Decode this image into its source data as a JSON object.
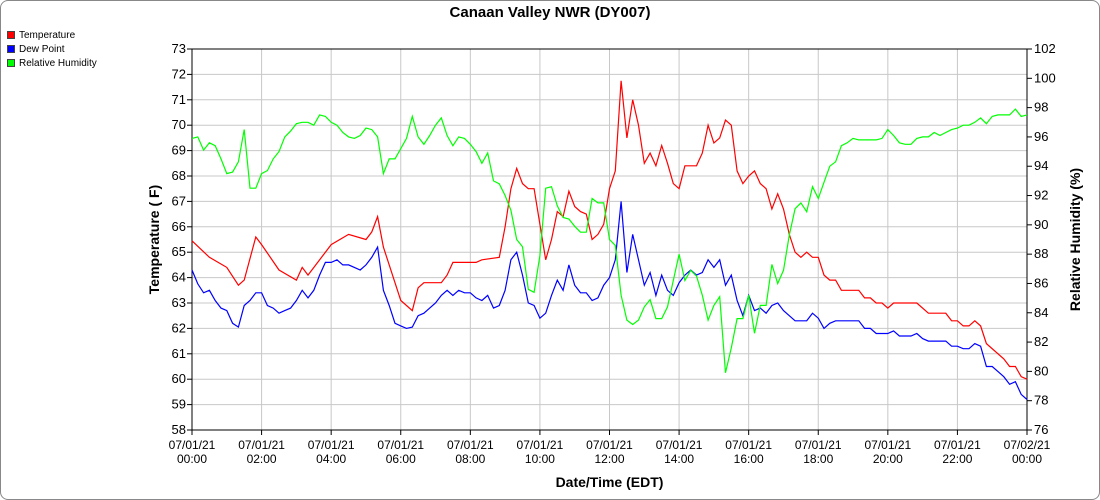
{
  "chart_data": {
    "type": "line",
    "title": "Canaan Valley NWR (DY007)",
    "xlabel": "Date/Time (EDT)",
    "ylabel": "Temperature ( F)",
    "y2label": "Relative Humidity (%)",
    "ylim": [
      58,
      73
    ],
    "y2lim": [
      76,
      102
    ],
    "yticks": [
      "58",
      "59",
      "60",
      "61",
      "62",
      "63",
      "64",
      "65",
      "66",
      "67",
      "68",
      "69",
      "70",
      "71",
      "72",
      "73"
    ],
    "y2ticks": [
      "76",
      "78",
      "80",
      "82",
      "84",
      "86",
      "88",
      "90",
      "92",
      "94",
      "96",
      "98",
      "100",
      "102"
    ],
    "xticks": [
      {
        "date": "07/01/21",
        "time": "00:00"
      },
      {
        "date": "07/01/21",
        "time": "02:00"
      },
      {
        "date": "07/01/21",
        "time": "04:00"
      },
      {
        "date": "07/01/21",
        "time": "06:00"
      },
      {
        "date": "07/01/21",
        "time": "08:00"
      },
      {
        "date": "07/01/21",
        "time": "10:00"
      },
      {
        "date": "07/01/21",
        "time": "12:00"
      },
      {
        "date": "07/01/21",
        "time": "14:00"
      },
      {
        "date": "07/01/21",
        "time": "16:00"
      },
      {
        "date": "07/01/21",
        "time": "18:00"
      },
      {
        "date": "07/01/21",
        "time": "20:00"
      },
      {
        "date": "07/01/21",
        "time": "22:00"
      },
      {
        "date": "07/02/21",
        "time": "00:00"
      }
    ],
    "interval_minutes": 10,
    "grid": true,
    "legend_position": "top-left",
    "series": [
      {
        "name": "Temperature",
        "color": "#ff0000",
        "axis": "left",
        "points": [
          [
            0,
            65.45
          ],
          [
            3,
            64.8
          ],
          [
            6,
            64.4
          ],
          [
            8,
            63.7
          ],
          [
            9,
            63.9
          ],
          [
            11,
            65.6
          ],
          [
            12,
            65.3
          ],
          [
            15,
            64.3
          ],
          [
            18,
            63.9
          ],
          [
            19,
            64.4
          ],
          [
            20,
            64.1
          ],
          [
            24,
            65.3
          ],
          [
            27,
            65.7
          ],
          [
            30,
            65.5
          ],
          [
            31,
            65.8
          ],
          [
            32,
            66.4
          ],
          [
            33,
            65.2
          ],
          [
            36,
            63.1
          ],
          [
            38,
            62.7
          ],
          [
            39,
            63.6
          ],
          [
            40,
            63.8
          ],
          [
            43,
            63.8
          ],
          [
            44,
            64.1
          ],
          [
            45,
            64.6
          ],
          [
            49,
            64.6
          ],
          [
            50,
            64.7
          ],
          [
            53,
            64.8
          ],
          [
            54,
            66.0
          ],
          [
            55,
            67.5
          ],
          [
            56,
            68.3
          ],
          [
            57,
            67.7
          ],
          [
            58,
            67.5
          ],
          [
            59,
            67.5
          ],
          [
            60,
            66.1
          ],
          [
            61,
            64.7
          ],
          [
            62,
            65.5
          ],
          [
            63,
            66.6
          ],
          [
            64,
            66.4
          ],
          [
            65,
            67.4
          ],
          [
            66,
            66.8
          ],
          [
            67,
            66.6
          ],
          [
            68,
            66.5
          ],
          [
            69,
            65.5
          ],
          [
            70,
            65.7
          ],
          [
            71,
            66.1
          ],
          [
            72,
            67.5
          ],
          [
            73,
            68.2
          ],
          [
            74,
            71.75
          ],
          [
            75,
            69.5
          ],
          [
            76,
            71.0
          ],
          [
            77,
            70.0
          ],
          [
            78,
            68.5
          ],
          [
            79,
            68.9
          ],
          [
            80,
            68.4
          ],
          [
            81,
            69.2
          ],
          [
            82,
            68.5
          ],
          [
            83,
            67.7
          ],
          [
            84,
            67.5
          ],
          [
            85,
            68.4
          ],
          [
            87,
            68.4
          ],
          [
            88,
            68.9
          ],
          [
            89,
            70.0
          ],
          [
            90,
            69.3
          ],
          [
            91,
            69.5
          ],
          [
            92,
            70.2
          ],
          [
            93,
            70.0
          ],
          [
            94,
            68.2
          ],
          [
            95,
            67.7
          ],
          [
            96,
            68.0
          ],
          [
            97,
            68.2
          ],
          [
            98,
            67.7
          ],
          [
            99,
            67.5
          ],
          [
            100,
            66.7
          ],
          [
            101,
            67.3
          ],
          [
            102,
            66.7
          ],
          [
            103,
            65.7
          ],
          [
            104,
            65.0
          ],
          [
            105,
            64.8
          ],
          [
            106,
            65.0
          ],
          [
            107,
            64.8
          ],
          [
            108,
            64.8
          ],
          [
            109,
            64.1
          ],
          [
            110,
            63.9
          ],
          [
            111,
            63.9
          ],
          [
            112,
            63.5
          ],
          [
            115,
            63.5
          ],
          [
            116,
            63.2
          ],
          [
            117,
            63.2
          ],
          [
            118,
            63.0
          ],
          [
            119,
            63.0
          ],
          [
            120,
            62.8
          ],
          [
            121,
            63.0
          ],
          [
            125,
            63.0
          ],
          [
            127,
            62.6
          ],
          [
            130,
            62.6
          ],
          [
            131,
            62.3
          ],
          [
            132,
            62.3
          ],
          [
            133,
            62.1
          ],
          [
            134,
            62.1
          ],
          [
            135,
            62.3
          ],
          [
            136,
            62.1
          ],
          [
            137,
            61.4
          ],
          [
            140,
            60.8
          ],
          [
            141,
            60.5
          ],
          [
            142,
            60.5
          ],
          [
            143,
            60.1
          ],
          [
            144,
            60.0
          ]
        ]
      },
      {
        "name": "Dew Point",
        "color": "#0000ff",
        "axis": "left",
        "values": [
          64.3,
          63.75,
          63.4,
          63.5,
          63.1,
          62.8,
          62.7,
          62.2,
          62.05,
          62.9,
          63.1,
          63.4,
          63.4,
          62.9,
          62.8,
          62.6,
          62.7,
          62.8,
          63.1,
          63.5,
          63.2,
          63.5,
          64.1,
          64.6,
          64.6,
          64.7,
          64.5,
          64.5,
          64.4,
          64.3,
          64.5,
          64.8,
          65.2,
          63.5,
          62.9,
          62.2,
          62.1,
          62.0,
          62.05,
          62.5,
          62.6,
          62.8,
          63.0,
          63.3,
          63.5,
          63.3,
          63.5,
          63.4,
          63.4,
          63.2,
          63.1,
          63.3,
          62.8,
          62.9,
          63.5,
          64.7,
          65.0,
          64.1,
          63.0,
          62.9,
          62.4,
          62.6,
          63.3,
          63.9,
          63.5,
          64.5,
          63.7,
          63.4,
          63.4,
          63.1,
          63.2,
          63.7,
          64.0,
          64.7,
          67.0,
          64.2,
          65.7,
          64.7,
          63.7,
          64.2,
          63.3,
          64.1,
          63.5,
          63.3,
          63.8,
          64.1,
          64.3,
          64.1,
          64.2,
          64.7,
          64.4,
          64.7,
          63.7,
          64.1,
          63.1,
          62.5,
          63.3,
          62.7,
          62.8,
          62.6,
          62.9,
          63.0,
          62.7,
          62.5,
          62.3,
          62.3,
          62.3,
          62.6,
          62.4,
          62.0,
          62.2,
          62.3,
          62.3,
          62.3,
          62.3,
          62.3,
          62.0,
          62.0,
          61.8,
          61.8,
          61.8,
          61.9,
          61.7,
          61.7,
          61.7,
          61.8,
          61.6,
          61.5,
          61.5,
          61.5,
          61.5,
          61.3,
          61.3,
          61.2,
          61.2,
          61.4,
          61.3,
          60.5,
          60.5,
          60.3,
          60.1,
          59.8,
          59.9,
          59.4,
          59.2
        ]
      },
      {
        "name": "Relative Humidity",
        "color": "#00ff00",
        "axis": "right",
        "values": [
          95.9,
          96.0,
          95.1,
          95.6,
          95.4,
          94.5,
          93.5,
          93.6,
          94.3,
          96.5,
          92.5,
          92.5,
          93.5,
          93.7,
          94.5,
          95.0,
          96.0,
          96.4,
          96.9,
          97.0,
          97.0,
          96.8,
          97.5,
          97.4,
          97.0,
          96.8,
          96.3,
          96.0,
          95.9,
          96.1,
          96.6,
          96.5,
          96.0,
          93.5,
          94.5,
          94.5,
          95.2,
          95.9,
          97.4,
          96.0,
          95.5,
          96.1,
          96.8,
          97.3,
          96.1,
          95.4,
          96.0,
          95.9,
          95.5,
          95.0,
          94.2,
          94.9,
          93.0,
          92.8,
          92.0,
          91.0,
          89.0,
          88.5,
          85.6,
          85.4,
          87.9,
          92.5,
          92.6,
          91.3,
          90.5,
          90.4,
          89.9,
          89.5,
          89.5,
          91.8,
          91.5,
          91.5,
          89.0,
          88.6,
          85.2,
          83.5,
          83.2,
          83.5,
          84.4,
          84.9,
          83.6,
          83.6,
          84.4,
          86.2,
          88.0,
          86.2,
          86.9,
          86.5,
          85.2,
          83.5,
          84.5,
          85.1,
          79.9,
          81.6,
          83.6,
          83.6,
          85.2,
          82.6,
          84.5,
          84.5,
          87.3,
          86.0,
          86.9,
          89.3,
          91.1,
          91.5,
          90.9,
          92.6,
          91.8,
          92.9,
          94.0,
          94.3,
          95.4,
          95.6,
          95.9,
          95.8,
          95.8,
          95.8,
          95.8,
          95.9,
          96.5,
          96.1,
          95.6,
          95.5,
          95.5,
          95.9,
          96.0,
          96.0,
          96.3,
          96.1,
          96.3,
          96.5,
          96.6,
          96.8,
          96.8,
          97.0,
          97.3,
          96.9,
          97.4,
          97.5,
          97.5,
          97.5,
          97.9,
          97.4,
          97.5
        ]
      }
    ]
  }
}
